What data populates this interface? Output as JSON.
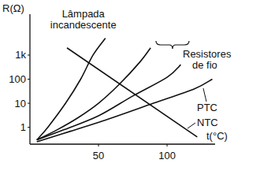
{
  "chart_data": {
    "type": "line",
    "y_label": "R(Ω)",
    "x_label": "t(°C)",
    "log": "y",
    "grid": false,
    "xlim": [
      0,
      135
    ],
    "ylim": [
      0.2,
      50000
    ],
    "xticks": [
      50,
      100
    ],
    "yticks": [
      1,
      10,
      100,
      {
        "value": 1000,
        "label": "1k"
      }
    ],
    "annotations": [
      "Resistores de fio"
    ],
    "series": [
      {
        "name": "Lâmpada incandescente",
        "color": "#111111",
        "x": [
          5,
          13,
          26,
          37,
          46,
          55
        ],
        "values": [
          0.3,
          1,
          10,
          100,
          1000,
          5000
        ]
      },
      {
        "color": "#111111",
        "x": [
          5,
          20,
          35,
          50,
          65,
          80,
          88
        ],
        "values": [
          0.3,
          0.8,
          2.5,
          10,
          60,
          500,
          2000
        ]
      },
      {
        "color": "#111111",
        "x": [
          5,
          25,
          50,
          75,
          100,
          110
        ],
        "values": [
          0.3,
          0.8,
          3,
          20,
          120,
          400
        ]
      },
      {
        "name": "PTC",
        "color": "#111111",
        "x": [
          5,
          30,
          60,
          90,
          120,
          133
        ],
        "values": [
          0.25,
          0.7,
          2.5,
          10,
          40,
          100
        ]
      },
      {
        "name": "NTC",
        "color": "#111111",
        "x": [
          27,
          122
        ],
        "values": [
          2000,
          0.4
        ]
      }
    ]
  }
}
